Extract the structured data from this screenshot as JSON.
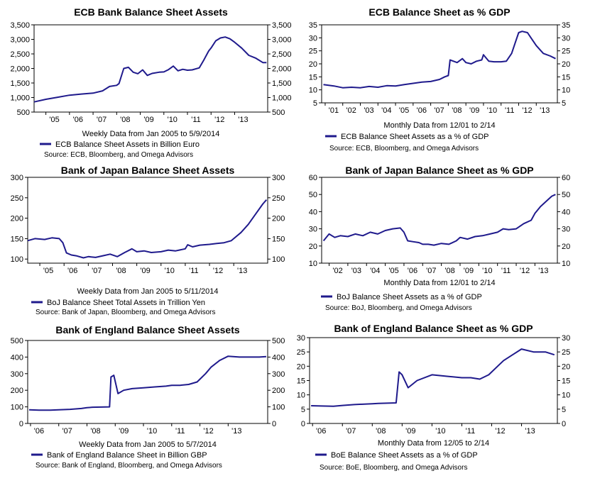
{
  "line_color": "#1f1a8c",
  "chart_data": [
    {
      "type": "line",
      "title": "ECB Bank Balance Sheet Assets",
      "xlabel": "Weekly Data from Jan 2005 to 5/9/2014",
      "legend": "ECB Balance Sheet Assets in Billion Euro",
      "source": "Source: ECB, Bloomberg, and Omega Advisors",
      "ylim": [
        500,
        3500
      ],
      "yticks": [
        "3,500",
        "3,000",
        "2,500",
        "2,000",
        "1,500",
        "1,000",
        "500"
      ],
      "ytick_values": [
        3500,
        3000,
        2500,
        2000,
        1500,
        1000,
        500
      ],
      "xlim": [
        2004.5,
        2014.4
      ],
      "xtick_labels": [
        "'05",
        "'06",
        "'07",
        "'08",
        "'09",
        "'10",
        "'11",
        "'12",
        "'13"
      ],
      "xtick_values": [
        2005,
        2006,
        2007,
        2008,
        2009,
        2010,
        2011,
        2012,
        2013
      ],
      "right_axis": true,
      "x": [
        2004.5,
        2005,
        2005.5,
        2006,
        2006.5,
        2007,
        2007.4,
        2007.7,
        2008,
        2008.1,
        2008.3,
        2008.5,
        2008.7,
        2008.9,
        2009.1,
        2009.3,
        2009.5,
        2009.8,
        2010,
        2010.2,
        2010.4,
        2010.6,
        2010.8,
        2011,
        2011.2,
        2011.5,
        2011.7,
        2011.9,
        2012,
        2012.2,
        2012.4,
        2012.6,
        2012.8,
        2013,
        2013.3,
        2013.6,
        2013.9,
        2014.2,
        2014.35
      ],
      "values": [
        850,
        940,
        1010,
        1080,
        1120,
        1150,
        1230,
        1380,
        1420,
        1480,
        2000,
        2040,
        1870,
        1820,
        1950,
        1760,
        1830,
        1870,
        1880,
        1960,
        2080,
        1920,
        1970,
        1940,
        1950,
        2020,
        2300,
        2600,
        2700,
        2950,
        3050,
        3080,
        3020,
        2900,
        2700,
        2450,
        2350,
        2200,
        2200
      ]
    },
    {
      "type": "line",
      "title": "ECB Balance Sheet as % GDP",
      "xlabel": "Monthly Data from 12/01 to 2/14",
      "legend": "ECB Balance Sheet Assets as a % of GDP",
      "source": "Source: ECB, Bloomberg, and Omega Advisors",
      "ylim": [
        5,
        35
      ],
      "yticks": [
        "35",
        "30",
        "25",
        "20",
        "15",
        "10",
        "5"
      ],
      "ytick_values": [
        35,
        30,
        25,
        20,
        15,
        10,
        5
      ],
      "xlim": [
        2000.8,
        2014.2
      ],
      "xtick_labels": [
        "'01",
        "'02",
        "'03",
        "'04",
        "'05",
        "'06",
        "'07",
        "'08",
        "'09",
        "'10",
        "'11",
        "'12",
        "'13"
      ],
      "xtick_values": [
        2001,
        2002,
        2003,
        2004,
        2005,
        2006,
        2007,
        2008,
        2009,
        2010,
        2011,
        2012,
        2013
      ],
      "right_axis": true,
      "x": [
        2000.9,
        2001.5,
        2002,
        2002.5,
        2003,
        2003.5,
        2004,
        2004.5,
        2005,
        2005.5,
        2006,
        2006.5,
        2007,
        2007.5,
        2007.8,
        2008,
        2008.1,
        2008.5,
        2008.8,
        2009,
        2009.3,
        2009.6,
        2009.9,
        2010,
        2010.3,
        2010.6,
        2011,
        2011.3,
        2011.6,
        2011.8,
        2012,
        2012.2,
        2012.5,
        2012.7,
        2013,
        2013.4,
        2013.8,
        2014.1
      ],
      "values": [
        12,
        11.5,
        10.8,
        11,
        10.8,
        11.3,
        11,
        11.6,
        11.5,
        12,
        12.5,
        13,
        13.2,
        14,
        15,
        15.5,
        21.5,
        20.5,
        22,
        20.5,
        20,
        21,
        21.5,
        23.5,
        21,
        20.8,
        20.8,
        21,
        24,
        28,
        32,
        32.5,
        32,
        30,
        27,
        24,
        23,
        22
      ]
    },
    {
      "type": "line",
      "title": "Bank of Japan Balance Sheet Assets",
      "xlabel": "Weekly Data from Jan 2005 to 5/11/2014",
      "legend": "BoJ Balance Sheet Total Assets in Trillion Yen",
      "source": "Source: Bank of Japan, Bloomberg, and Omega Advisors",
      "ylim": [
        90,
        300
      ],
      "yticks": [
        "300",
        "250",
        "200",
        "150",
        "100"
      ],
      "ytick_values": [
        300,
        250,
        200,
        150,
        100
      ],
      "xlim": [
        2004.5,
        2014.4
      ],
      "xtick_labels": [
        "'05",
        "'06",
        "'07",
        "'08",
        "'09",
        "'10",
        "'11",
        "'12",
        "'13"
      ],
      "xtick_values": [
        2005,
        2006,
        2007,
        2008,
        2009,
        2010,
        2011,
        2012,
        2013
      ],
      "right_axis": true,
      "x": [
        2004.5,
        2004.8,
        2005.2,
        2005.5,
        2005.8,
        2005.95,
        2006.1,
        2006.3,
        2006.5,
        2006.8,
        2007,
        2007.3,
        2007.6,
        2007.9,
        2008.2,
        2008.5,
        2008.8,
        2009,
        2009.3,
        2009.6,
        2010,
        2010.3,
        2010.6,
        2011,
        2011.1,
        2011.3,
        2011.6,
        2012,
        2012.3,
        2012.6,
        2012.9,
        2013,
        2013.3,
        2013.6,
        2013.9,
        2014.2,
        2014.35
      ],
      "values": [
        145,
        150,
        148,
        152,
        150,
        140,
        115,
        110,
        108,
        103,
        106,
        104,
        108,
        112,
        106,
        116,
        125,
        118,
        120,
        116,
        118,
        122,
        120,
        125,
        135,
        130,
        134,
        136,
        138,
        140,
        145,
        150,
        165,
        185,
        210,
        235,
        245
      ]
    },
    {
      "type": "line",
      "title": "Bank of Japan Balance Sheet as % GDP",
      "xlabel": "Monthly Data from 12/01 to 2/14",
      "legend": "BoJ Balance Sheet Assets as a % of GDP",
      "source": "Source: BoJ, Bloomberg, and Omega Advisors",
      "ylim": [
        10,
        60
      ],
      "yticks": [
        "60",
        "50",
        "40",
        "30",
        "20",
        "10"
      ],
      "ytick_values": [
        60,
        50,
        40,
        30,
        20,
        10
      ],
      "xlim": [
        2001.6,
        2014.2
      ],
      "xtick_labels": [
        "'02",
        "'03",
        "'04",
        "'05",
        "'06",
        "'07",
        "'08",
        "'09",
        "'10",
        "'11",
        "'12",
        "'13"
      ],
      "xtick_values": [
        2002,
        2003,
        2004,
        2005,
        2006,
        2007,
        2008,
        2009,
        2010,
        2011,
        2012,
        2013
      ],
      "right_axis": true,
      "x": [
        2001.7,
        2002,
        2002.3,
        2002.6,
        2003,
        2003.4,
        2003.8,
        2004.2,
        2004.6,
        2005,
        2005.4,
        2005.8,
        2006,
        2006.2,
        2006.5,
        2006.8,
        2007,
        2007.3,
        2007.6,
        2008,
        2008.4,
        2008.8,
        2009,
        2009.4,
        2009.8,
        2010.2,
        2010.6,
        2011,
        2011.3,
        2011.6,
        2012,
        2012.4,
        2012.8,
        2013,
        2013.3,
        2013.6,
        2013.9,
        2014.1
      ],
      "values": [
        23,
        27,
        25,
        26,
        25.5,
        27,
        26,
        28,
        27,
        29,
        30,
        30.5,
        28,
        23,
        22.5,
        22,
        21,
        21,
        20.5,
        21.5,
        21,
        23,
        25,
        24,
        25.5,
        26,
        27,
        28,
        30,
        29.5,
        30,
        33,
        35,
        39,
        43,
        46,
        49,
        50
      ]
    },
    {
      "type": "line",
      "title": "Bank of England Balance Sheet Assets",
      "xlabel": "Weekly Data from Jan 2005 to 5/7/2014",
      "legend": "Bank of England Balance Sheet in Billion GBP",
      "source": "Source: Bank of England, Bloomberg, and Omega Advisors",
      "ylim": [
        0,
        500
      ],
      "yticks": [
        "500",
        "400",
        "300",
        "200",
        "100",
        "0"
      ],
      "ytick_values": [
        500,
        400,
        300,
        200,
        100,
        0
      ],
      "xlim": [
        2005.9,
        2014.4
      ],
      "xtick_labels": [
        "'06",
        "'07",
        "'08",
        "'09",
        "'10",
        "'11",
        "'12",
        "'13"
      ],
      "xtick_values": [
        2006,
        2007,
        2008,
        2009,
        2010,
        2011,
        2012,
        2013
      ],
      "right_axis": true,
      "x": [
        2005.95,
        2006.3,
        2006.7,
        2007,
        2007.4,
        2007.8,
        2008,
        2008.2,
        2008.8,
        2008.85,
        2008.95,
        2009.1,
        2009.3,
        2009.6,
        2010,
        2010.4,
        2010.8,
        2011,
        2011.3,
        2011.6,
        2011.9,
        2012.2,
        2012.4,
        2012.7,
        2013,
        2013.4,
        2013.8,
        2014.1,
        2014.35
      ],
      "values": [
        82,
        80,
        80,
        82,
        85,
        90,
        95,
        98,
        100,
        280,
        290,
        180,
        200,
        210,
        215,
        220,
        225,
        230,
        230,
        235,
        250,
        300,
        340,
        380,
        405,
        400,
        400,
        400,
        403
      ]
    },
    {
      "type": "line",
      "title": "Bank of England Balance Sheet as % GDP",
      "xlabel": "Monthly Data from 12/05 to 2/14",
      "legend": "BoE Balance Sheet Assets as a % of GDP",
      "source": "Source: BoE, Bloomberg, and Omega Advisors",
      "ylim": [
        0,
        30
      ],
      "yticks": [
        "30",
        "25",
        "20",
        "15",
        "10",
        "5",
        "0"
      ],
      "ytick_values": [
        30,
        25,
        20,
        15,
        10,
        5,
        0
      ],
      "xlim": [
        2005.9,
        2014.2
      ],
      "xtick_labels": [
        "'06",
        "'07",
        "'08",
        "'09",
        "'10",
        "'11",
        "'12",
        "'13"
      ],
      "xtick_values": [
        2006,
        2007,
        2008,
        2009,
        2010,
        2011,
        2012,
        2013
      ],
      "right_axis": true,
      "x": [
        2005.95,
        2006.3,
        2006.7,
        2007,
        2007.4,
        2007.8,
        2008,
        2008.2,
        2008.8,
        2008.9,
        2009,
        2009.2,
        2009.5,
        2010,
        2010.5,
        2011,
        2011.3,
        2011.6,
        2011.9,
        2012.2,
        2012.4,
        2012.7,
        2013,
        2013.4,
        2013.8,
        2014.1
      ],
      "values": [
        6.2,
        6.1,
        6,
        6.3,
        6.6,
        6.8,
        6.9,
        7,
        7.2,
        18,
        17,
        12.5,
        15,
        17,
        16.5,
        16,
        16,
        15.5,
        17,
        20,
        22,
        24,
        26,
        25,
        25,
        24
      ]
    }
  ]
}
